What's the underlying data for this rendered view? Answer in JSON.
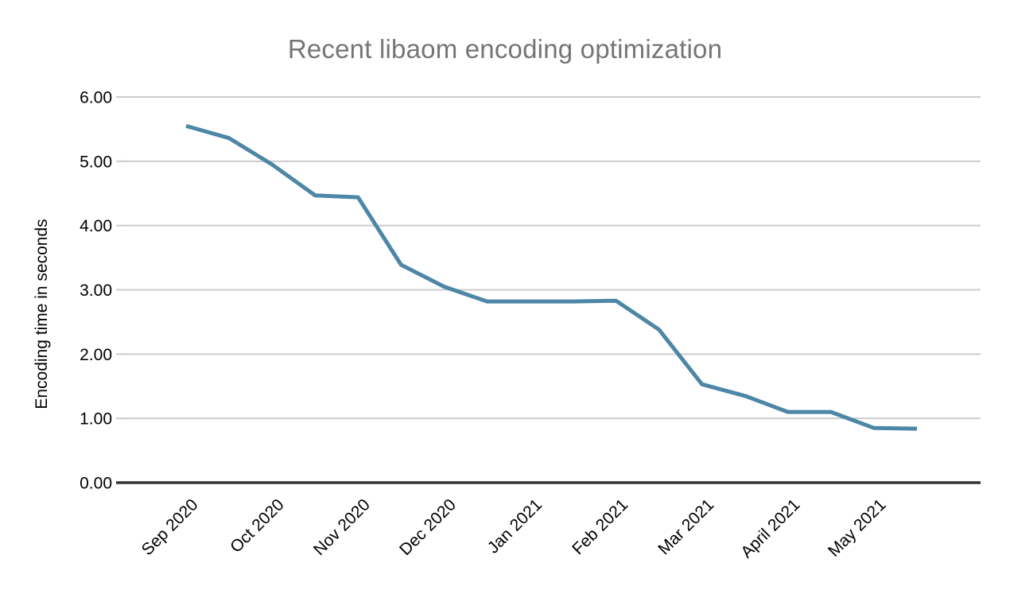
{
  "chart_data": {
    "type": "line",
    "title": "Recent libaom encoding optimization",
    "xlabel": "",
    "ylabel": "Encoding time in seconds",
    "ylim": [
      0,
      6
    ],
    "y_ticks": [
      "0.00",
      "1.00",
      "2.00",
      "3.00",
      "4.00",
      "5.00",
      "6.00"
    ],
    "categories": [
      "Sep 2020",
      "Oct 2020",
      "Nov 2020",
      "Dec 2020",
      "Jan 2021",
      "Feb 2021",
      "Mar 2021",
      "April 2021",
      "May 2021"
    ],
    "points_per_category": 2,
    "values": [
      5.55,
      5.36,
      4.95,
      4.47,
      4.44,
      3.39,
      3.05,
      2.82,
      2.82,
      2.82,
      2.83,
      2.38,
      1.53,
      1.35,
      1.1,
      1.1,
      0.85,
      0.84
    ],
    "grid": true,
    "legend": "none",
    "colors": {
      "line": "#4d86a6",
      "title": "#757575",
      "axis": "#333333",
      "gridline": "#cccccc",
      "tick_label": "#000000"
    }
  }
}
